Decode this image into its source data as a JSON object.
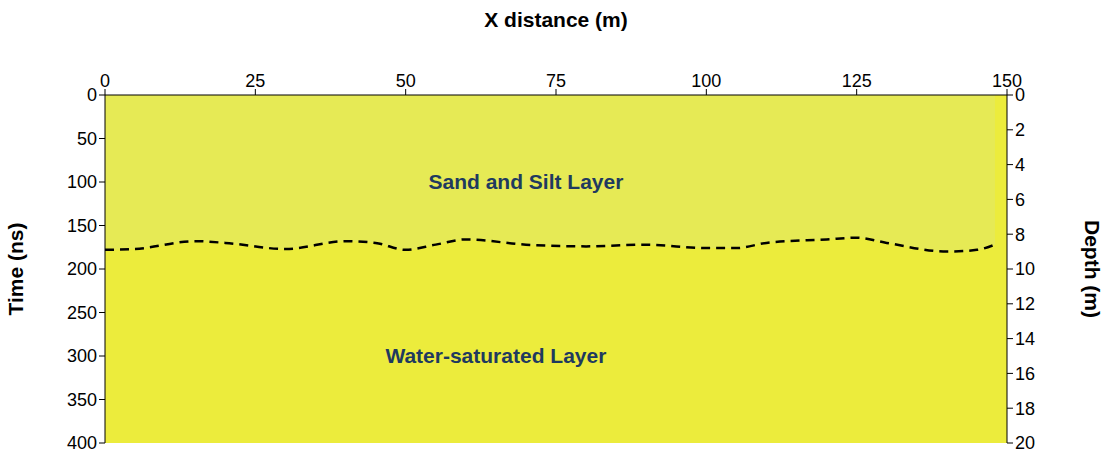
{
  "chart_data": {
    "type": "area",
    "x_label": "X distance (m)",
    "y_label": "Time (ns)",
    "y2_label": "Depth (m)",
    "xlim": [
      0,
      150
    ],
    "xticks": [
      0,
      25,
      50,
      75,
      100,
      125,
      150
    ],
    "ylim": [
      0,
      400
    ],
    "yticks": [
      0,
      50,
      100,
      150,
      200,
      250,
      300,
      350,
      400
    ],
    "y2lim": [
      0,
      20
    ],
    "y2ticks": [
      0,
      2,
      4,
      6,
      8,
      10,
      12,
      14,
      16,
      18,
      20
    ],
    "grid": false,
    "series": [
      {
        "color": "#000000",
        "line_style": "dashed",
        "x": [
          0,
          5,
          15,
          20,
          30,
          40,
          45,
          50,
          55,
          60,
          70,
          80,
          90,
          100,
          105,
          110,
          120,
          125,
          130,
          140,
          145,
          148
        ],
        "values": [
          178,
          177,
          168,
          170,
          177,
          168,
          170,
          178,
          172,
          166,
          172,
          174,
          172,
          176,
          176,
          170,
          166,
          164,
          170,
          180,
          178,
          172
        ]
      }
    ],
    "annotations": [
      {
        "text": "Sand and Silt Layer",
        "x": 70,
        "y": 100
      },
      {
        "text": "Water-saturated Layer",
        "x": 65,
        "y": 300
      }
    ]
  }
}
